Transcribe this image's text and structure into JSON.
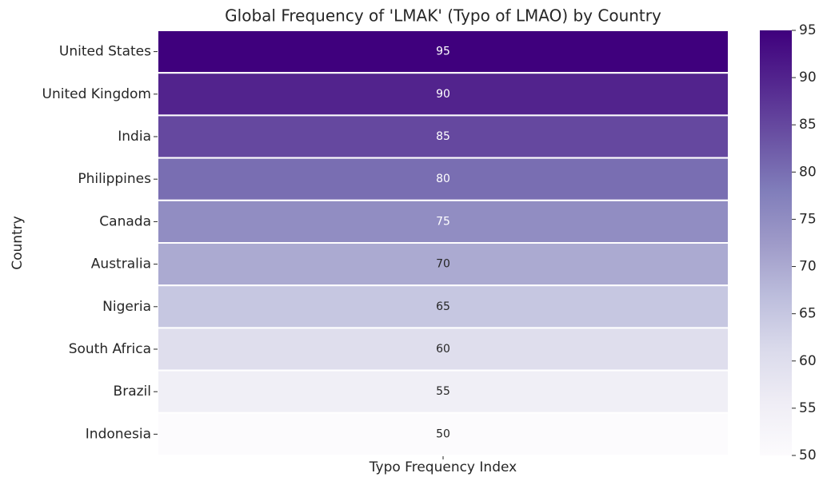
{
  "chart_data": {
    "type": "heatmap",
    "title": "Global Frequency of 'LMAK' (Typo of LMAO) by Country",
    "y_label": "Country",
    "columns": [
      "Typo Frequency Index"
    ],
    "categories": [
      "United States",
      "United Kingdom",
      "India",
      "Philippines",
      "Canada",
      "Australia",
      "Nigeria",
      "South Africa",
      "Brazil",
      "Indonesia"
    ],
    "values": [
      95,
      90,
      85,
      80,
      75,
      70,
      65,
      60,
      55,
      50
    ],
    "colormap": "Purples",
    "clim": [
      50,
      95
    ],
    "cticks": [
      50,
      55,
      60,
      65,
      70,
      75,
      80,
      85,
      90,
      95
    ]
  }
}
